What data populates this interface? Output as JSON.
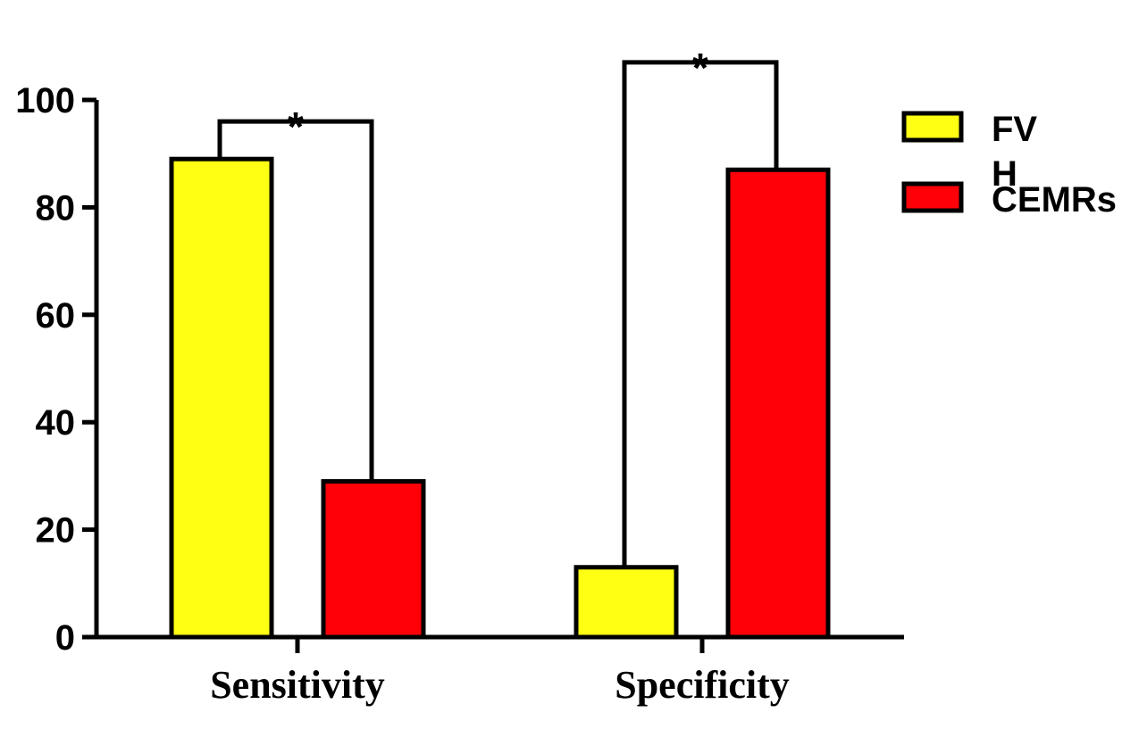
{
  "chart_data": {
    "type": "bar",
    "title": "",
    "xlabel": "",
    "ylabel": "",
    "ylim": [
      0,
      100
    ],
    "yticks": [
      0,
      20,
      40,
      60,
      80,
      100
    ],
    "categories": [
      "Sensitivity",
      "Specificity"
    ],
    "series": [
      {
        "name": "FV\nH",
        "color": "#ffff14",
        "values": [
          89,
          13
        ]
      },
      {
        "name": "CEMRs",
        "color": "#ff0009",
        "values": [
          29,
          87
        ]
      }
    ],
    "significance": [
      {
        "category": "Sensitivity",
        "label": "*",
        "bracket_top": 96
      },
      {
        "category": "Specificity",
        "label": "*",
        "bracket_top": 107
      }
    ],
    "legend_position": "top-right",
    "grid": false
  }
}
